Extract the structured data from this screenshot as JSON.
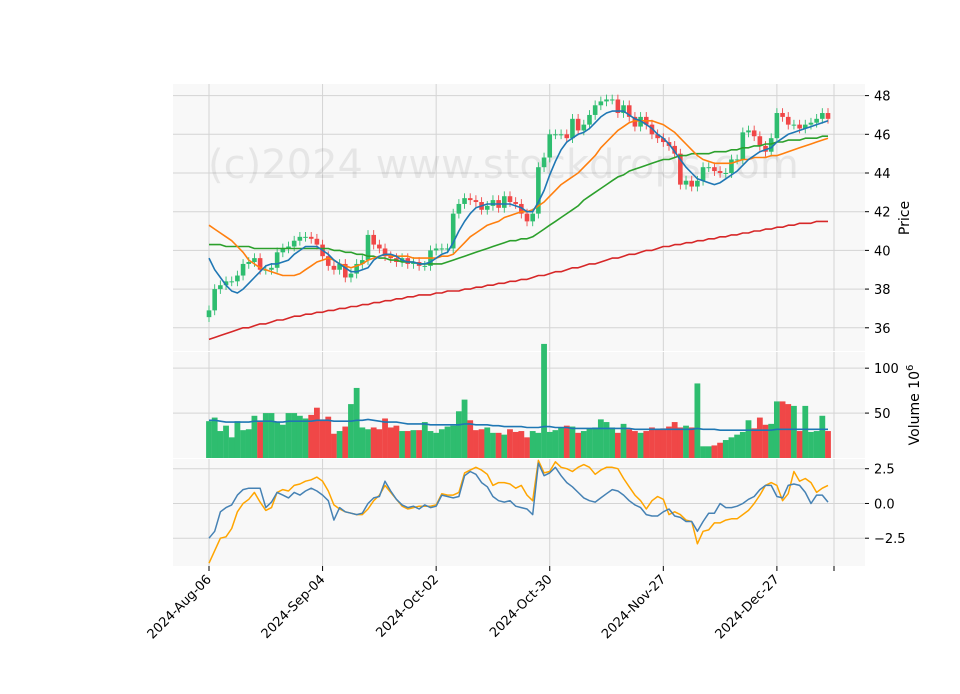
{
  "chart_data": {
    "type": "candlestick",
    "watermark": "(c)2024 www.stockdrops.com",
    "x_tick_labels": [
      "2024-Aug-06",
      "2024-Sep-04",
      "2024-Oct-02",
      "2024-Oct-30",
      "2024-Nov-27",
      "2024-Dec-27"
    ],
    "panels": {
      "price": {
        "ylabel": "Price",
        "ylim": [
          34.8,
          48.6
        ],
        "ticks": [
          36,
          38,
          40,
          42,
          44,
          46,
          48
        ]
      },
      "volume": {
        "ylabel": "Volume  10^6",
        "ylim": [
          0,
          118
        ],
        "ticks": [
          50,
          100
        ]
      },
      "indicator": {
        "ylim": [
          -4.5,
          3.2
        ],
        "ticks": [
          -2.5,
          0.0,
          2.5
        ],
        "tick_labels": [
          "−2.5",
          "0.0",
          "2.5"
        ]
      }
    },
    "colors": {
      "up": "#2ebd6f",
      "down": "#f04747",
      "ma_blue": "#1f77b4",
      "ma_orange": "#ff7f0e",
      "ma_green": "#2ca02c",
      "ma_red": "#d62728",
      "vol_avg": "#1f77b4",
      "osc_blue": "#4682b4",
      "osc_orange": "#ffa500"
    },
    "close": [
      36.9,
      38.0,
      38.2,
      38.4,
      38.4,
      38.7,
      39.3,
      39.4,
      39.6,
      39.0,
      39.0,
      39.1,
      39.9,
      40.1,
      40.2,
      40.5,
      40.7,
      40.7,
      40.6,
      40.3,
      39.7,
      39.2,
      39.0,
      39.3,
      38.6,
      38.8,
      39.3,
      39.5,
      40.8,
      40.3,
      40.1,
      39.7,
      39.6,
      39.4,
      39.6,
      39.3,
      39.4,
      39.2,
      39.2,
      40.0,
      40.1,
      40.1,
      40.1,
      41.9,
      42.4,
      42.7,
      42.6,
      42.5,
      42.1,
      42.3,
      42.6,
      42.2,
      42.8,
      42.5,
      42.4,
      41.9,
      41.5,
      41.9,
      44.3,
      44.8,
      46.0,
      46.0,
      46.0,
      45.8,
      46.8,
      46.2,
      46.5,
      47.0,
      47.5,
      47.7,
      47.8,
      47.8,
      47.1,
      47.5,
      46.9,
      46.4,
      46.9,
      46.5,
      46.0,
      45.8,
      45.6,
      45.4,
      45.0,
      43.4,
      43.6,
      43.3,
      43.6,
      44.3,
      44.3,
      44.1,
      44.0,
      44.0,
      44.7,
      44.7,
      46.1,
      46.2,
      45.9,
      45.4,
      45.1,
      45.8,
      47.1,
      46.9,
      46.5,
      46.5,
      46.3,
      46.5,
      46.6,
      46.8,
      47.1,
      46.8
    ],
    "volume": [
      41,
      45,
      30,
      36,
      23,
      41,
      31,
      32,
      47,
      40,
      50,
      50,
      40,
      37,
      50,
      50,
      47,
      44,
      48,
      56,
      43,
      46,
      27,
      30,
      35,
      60,
      78,
      34,
      32,
      34,
      32,
      44,
      34,
      36,
      30,
      30,
      31,
      31,
      40,
      30,
      28,
      32,
      35,
      36,
      52,
      65,
      42,
      31,
      32,
      34,
      28,
      28,
      26,
      32,
      29,
      30,
      23,
      30,
      28,
      127,
      29,
      31,
      34,
      36,
      35,
      28,
      30,
      33,
      34,
      43,
      40,
      34,
      28,
      38,
      32,
      30,
      28,
      30,
      34,
      32,
      33,
      35,
      40,
      34,
      36,
      34,
      83,
      13,
      13,
      14,
      17,
      20,
      23,
      26,
      29,
      42,
      33,
      45,
      37,
      38,
      63,
      63,
      60,
      58,
      30,
      58,
      29,
      30,
      47,
      30
    ],
    "vol_avg": [
      42,
      42,
      41,
      40,
      40,
      40,
      40,
      40,
      41,
      41,
      41,
      41,
      40,
      40,
      41,
      41,
      41,
      41,
      41,
      42,
      42,
      42,
      41,
      41,
      41,
      41,
      42,
      42,
      43,
      42,
      41,
      40,
      40,
      40,
      39,
      38,
      38,
      38,
      38,
      37,
      37,
      37,
      37,
      37,
      37,
      38,
      38,
      37,
      37,
      37,
      36,
      36,
      35,
      35,
      35,
      35,
      34,
      34,
      34,
      35,
      35,
      34,
      34,
      34,
      33,
      33,
      33,
      33,
      33,
      33,
      33,
      33,
      33,
      33,
      33,
      32,
      32,
      32,
      32,
      32,
      32,
      32,
      32,
      32,
      32,
      32,
      33,
      32,
      32,
      32,
      31,
      31,
      31,
      31,
      31,
      31,
      31,
      31,
      31,
      31,
      32,
      32,
      32,
      32,
      32,
      32,
      32,
      32,
      32,
      32
    ],
    "ma_blue": [
      39.6,
      39.0,
      38.6,
      38.2,
      37.9,
      37.8,
      38.0,
      38.3,
      38.6,
      38.9,
      39.2,
      39.3,
      39.3,
      39.4,
      39.5,
      39.8,
      40.0,
      40.2,
      40.2,
      40.2,
      40.0,
      39.8,
      39.5,
      39.3,
      39.1,
      38.9,
      38.9,
      39.0,
      39.1,
      39.5,
      39.7,
      39.8,
      39.8,
      39.7,
      39.5,
      39.4,
      39.4,
      39.3,
      39.3,
      39.4,
      39.6,
      39.8,
      39.9,
      40.4,
      41.0,
      41.5,
      41.9,
      42.2,
      42.3,
      42.4,
      42.4,
      42.4,
      42.4,
      42.4,
      42.3,
      42.2,
      42.0,
      42.0,
      42.5,
      43.1,
      43.9,
      44.6,
      45.2,
      45.6,
      45.8,
      46.0,
      46.1,
      46.3,
      46.6,
      46.9,
      47.1,
      47.2,
      47.2,
      47.2,
      47.0,
      46.8,
      46.7,
      46.5,
      46.3,
      46.0,
      45.8,
      45.5,
      45.1,
      44.7,
      44.3,
      44.0,
      43.7,
      43.6,
      43.5,
      43.4,
      43.5,
      43.7,
      43.9,
      44.1,
      44.4,
      44.7,
      44.9,
      45.1,
      45.2,
      45.3,
      45.6,
      45.8,
      46.0,
      46.1,
      46.2,
      46.3,
      46.4,
      46.5,
      46.6,
      46.7
    ],
    "ma_orange": [
      41.3,
      41.1,
      40.9,
      40.7,
      40.5,
      40.2,
      39.9,
      39.5,
      39.3,
      39.1,
      39.0,
      38.9,
      38.8,
      38.7,
      38.7,
      38.7,
      38.8,
      39.0,
      39.2,
      39.4,
      39.5,
      39.6,
      39.5,
      39.3,
      39.2,
      39.1,
      39.2,
      39.3,
      39.5,
      39.6,
      39.7,
      39.8,
      39.7,
      39.7,
      39.7,
      39.7,
      39.6,
      39.6,
      39.6,
      39.6,
      39.6,
      39.7,
      39.7,
      39.8,
      40.1,
      40.4,
      40.7,
      40.9,
      41.1,
      41.3,
      41.4,
      41.5,
      41.7,
      41.8,
      41.9,
      42.0,
      42.0,
      42.1,
      42.3,
      42.5,
      42.8,
      43.1,
      43.4,
      43.6,
      43.8,
      44.0,
      44.3,
      44.6,
      44.9,
      45.3,
      45.6,
      45.9,
      46.2,
      46.4,
      46.6,
      46.7,
      46.7,
      46.7,
      46.7,
      46.6,
      46.5,
      46.3,
      46.1,
      45.8,
      45.5,
      45.2,
      44.9,
      44.7,
      44.6,
      44.5,
      44.5,
      44.5,
      44.5,
      44.6,
      44.7,
      44.7,
      44.8,
      44.8,
      44.8,
      44.9,
      44.9,
      45.0,
      45.1,
      45.2,
      45.3,
      45.4,
      45.5,
      45.6,
      45.7,
      45.8
    ],
    "ma_green": [
      40.3,
      40.3,
      40.3,
      40.2,
      40.2,
      40.2,
      40.2,
      40.2,
      40.1,
      40.1,
      40.1,
      40.1,
      40.1,
      40.1,
      40.1,
      40.1,
      40.1,
      40.1,
      40.1,
      40.1,
      40.1,
      40.1,
      40.0,
      40.0,
      39.9,
      39.9,
      39.8,
      39.8,
      39.7,
      39.7,
      39.6,
      39.6,
      39.5,
      39.5,
      39.4,
      39.4,
      39.4,
      39.3,
      39.3,
      39.3,
      39.3,
      39.3,
      39.4,
      39.5,
      39.6,
      39.7,
      39.8,
      39.9,
      40.0,
      40.1,
      40.2,
      40.3,
      40.4,
      40.5,
      40.5,
      40.6,
      40.6,
      40.7,
      40.9,
      41.1,
      41.3,
      41.5,
      41.7,
      41.9,
      42.1,
      42.3,
      42.6,
      42.8,
      43.0,
      43.2,
      43.4,
      43.6,
      43.8,
      43.9,
      44.1,
      44.2,
      44.3,
      44.4,
      44.5,
      44.6,
      44.7,
      44.7,
      44.8,
      44.9,
      44.9,
      45.0,
      45.0,
      45.0,
      45.0,
      45.1,
      45.1,
      45.1,
      45.2,
      45.2,
      45.3,
      45.3,
      45.4,
      45.4,
      45.5,
      45.5,
      45.6,
      45.6,
      45.7,
      45.7,
      45.7,
      45.8,
      45.8,
      45.8,
      45.9,
      45.9
    ],
    "ma_red": [
      35.4,
      35.5,
      35.6,
      35.7,
      35.8,
      35.9,
      36.0,
      36.0,
      36.1,
      36.2,
      36.2,
      36.3,
      36.4,
      36.4,
      36.5,
      36.6,
      36.6,
      36.7,
      36.7,
      36.8,
      36.8,
      36.9,
      36.9,
      37.0,
      37.0,
      37.1,
      37.1,
      37.2,
      37.2,
      37.3,
      37.3,
      37.4,
      37.4,
      37.5,
      37.5,
      37.6,
      37.6,
      37.7,
      37.7,
      37.7,
      37.8,
      37.8,
      37.9,
      37.9,
      37.9,
      38.0,
      38.0,
      38.1,
      38.1,
      38.2,
      38.2,
      38.3,
      38.3,
      38.4,
      38.4,
      38.5,
      38.5,
      38.6,
      38.7,
      38.7,
      38.8,
      38.9,
      38.9,
      39.0,
      39.1,
      39.1,
      39.2,
      39.3,
      39.3,
      39.4,
      39.5,
      39.6,
      39.6,
      39.7,
      39.8,
      39.8,
      39.9,
      40.0,
      40.0,
      40.1,
      40.2,
      40.2,
      40.3,
      40.3,
      40.4,
      40.4,
      40.5,
      40.5,
      40.6,
      40.6,
      40.7,
      40.7,
      40.8,
      40.8,
      40.9,
      40.9,
      41.0,
      41.0,
      41.1,
      41.1,
      41.2,
      41.2,
      41.3,
      41.3,
      41.4,
      41.4,
      41.4,
      41.5,
      41.5,
      41.5
    ],
    "osc_blue": [
      -2.5,
      -2.0,
      -0.6,
      -0.3,
      -0.1,
      0.6,
      1.0,
      1.1,
      1.1,
      1.1,
      -0.3,
      0.1,
      0.8,
      0.6,
      0.4,
      0.8,
      0.6,
      0.9,
      1.1,
      0.9,
      0.6,
      0.2,
      -1.2,
      -0.3,
      -0.6,
      -0.7,
      -0.8,
      -0.7,
      0.0,
      0.4,
      0.5,
      1.6,
      0.9,
      0.3,
      -0.1,
      -0.3,
      -0.2,
      -0.4,
      -0.1,
      -0.3,
      -0.2,
      0.6,
      0.5,
      0.4,
      0.5,
      2.0,
      2.3,
      2.1,
      1.5,
      1.2,
      0.5,
      0.2,
      0.1,
      0.2,
      -0.2,
      -0.3,
      -0.4,
      -0.8,
      2.9,
      2.0,
      2.2,
      2.6,
      2.0,
      1.5,
      1.2,
      0.8,
      0.4,
      0.2,
      0.1,
      0.4,
      0.7,
      1.0,
      0.9,
      0.6,
      0.2,
      -0.1,
      -0.3,
      -0.8,
      -0.9,
      -0.9,
      -0.6,
      -0.4,
      -0.9,
      -1.0,
      -1.3,
      -1.3,
      -2.0,
      -1.3,
      -0.7,
      -0.7,
      0.0,
      -0.3,
      -0.3,
      -0.2,
      0.0,
      0.3,
      0.5,
      1.0,
      1.3,
      1.3,
      0.5,
      0.4,
      1.3,
      1.4,
      1.3,
      0.8,
      0.0,
      0.6,
      0.6,
      0.1
    ],
    "osc_orange": [
      -4.3,
      -3.4,
      -2.5,
      -2.4,
      -1.8,
      -0.6,
      0.0,
      0.3,
      0.8,
      0.1,
      -0.5,
      -0.3,
      0.8,
      1.0,
      0.9,
      1.3,
      1.4,
      1.6,
      1.7,
      1.9,
      1.6,
      0.9,
      -0.1,
      -0.4,
      -0.6,
      -0.7,
      -0.8,
      -0.8,
      -0.4,
      0.2,
      0.6,
      1.3,
      0.8,
      0.3,
      -0.2,
      -0.4,
      -0.3,
      -0.2,
      -0.2,
      -0.2,
      -0.1,
      0.7,
      0.6,
      0.6,
      0.8,
      2.2,
      2.4,
      2.6,
      2.4,
      2.1,
      1.3,
      1.5,
      1.5,
      1.4,
      1.1,
      1.3,
      0.6,
      0.2,
      3.1,
      2.2,
      2.3,
      3.0,
      2.6,
      2.5,
      2.3,
      2.6,
      2.8,
      2.6,
      2.1,
      2.4,
      2.6,
      2.6,
      2.5,
      1.8,
      1.2,
      0.6,
      0.2,
      -0.4,
      0.2,
      0.5,
      0.3,
      -0.8,
      -0.6,
      -0.8,
      -1.2,
      -1.3,
      -2.9,
      -2.0,
      -1.9,
      -1.4,
      -1.4,
      -1.2,
      -1.1,
      -1.1,
      -0.8,
      -0.5,
      0.0,
      0.6,
      1.3,
      1.5,
      1.3,
      0.2,
      0.7,
      2.3,
      1.6,
      1.8,
      1.5,
      0.8,
      1.1,
      1.3
    ]
  }
}
